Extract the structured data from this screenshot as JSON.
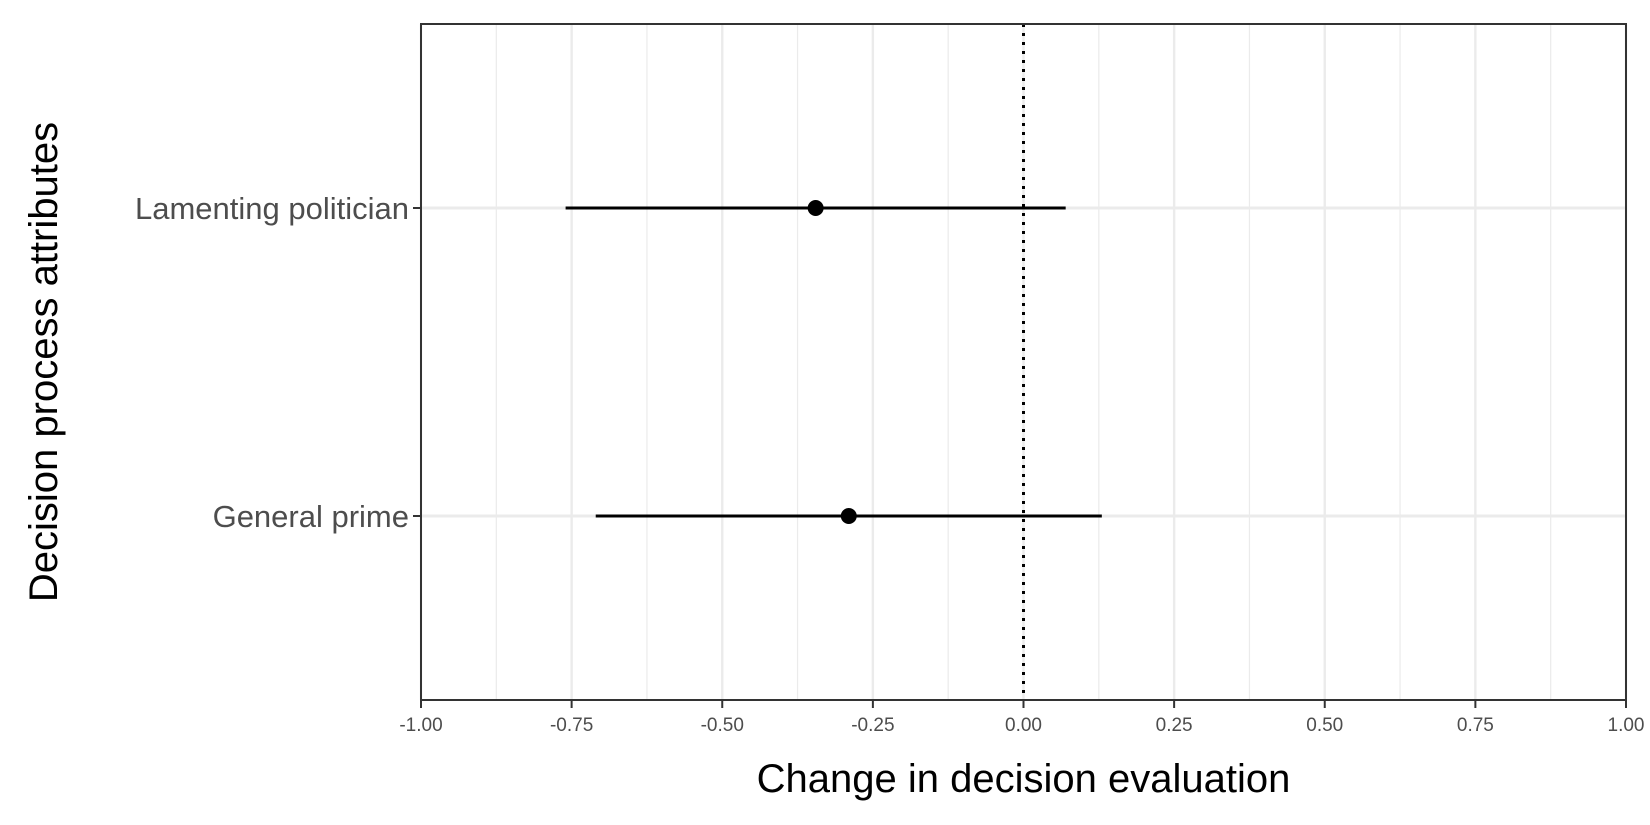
{
  "chart_data": {
    "type": "scatter",
    "subtype": "coefficient-plot",
    "title": "",
    "xlabel": "Change in decision evaluation",
    "ylabel": "Decision process attributes",
    "xlim": [
      -1.0,
      1.0
    ],
    "x_ticks": [
      "-1.00",
      "-0.75",
      "-0.50",
      "-0.25",
      "0.00",
      "0.25",
      "0.50",
      "0.75",
      "1.00"
    ],
    "x_tick_values": [
      -1.0,
      -0.75,
      -0.5,
      -0.25,
      0.0,
      0.25,
      0.5,
      0.75,
      1.0
    ],
    "categories": [
      "Lamenting politician",
      "General prime"
    ],
    "estimates": [
      -0.345,
      -0.29
    ],
    "ci_lower": [
      -0.76,
      -0.71
    ],
    "ci_upper": [
      0.07,
      0.13
    ],
    "reference_line": {
      "x": 0.0,
      "style": "dotted"
    },
    "grid": true,
    "legend": "none",
    "colors": {
      "points": "#000000",
      "grid": "#ebebeb",
      "panel_border": "#333333",
      "tick_text": "#4d4d4d"
    }
  }
}
